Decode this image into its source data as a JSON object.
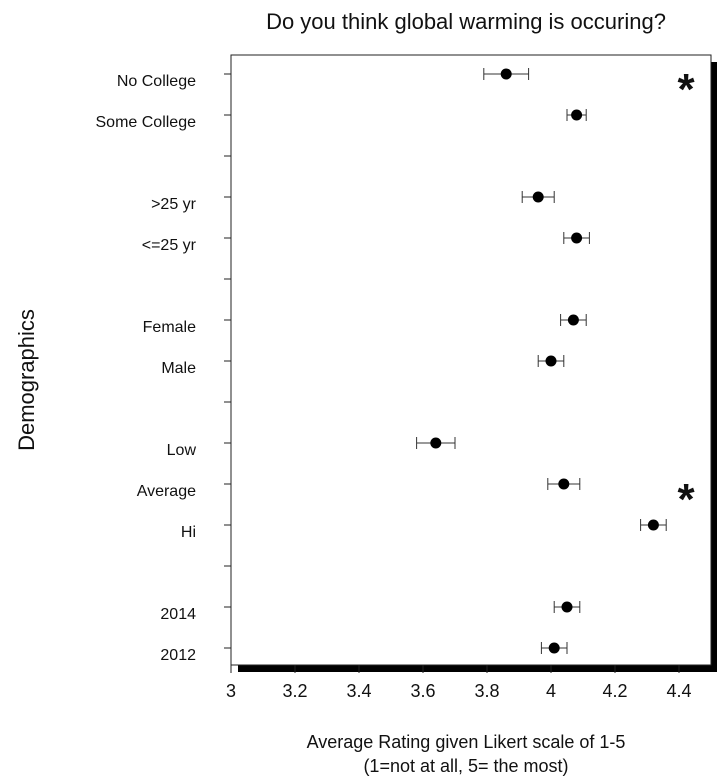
{
  "chart_data": {
    "type": "scatter",
    "title": "Do you think global warming is occuring?",
    "xlabel_line1": "Average Rating given Likert scale of 1-5",
    "xlabel_line2": "(1=not at all, 5= the most)",
    "ylabel": "Demographics",
    "xlim": [
      3,
      4.5
    ],
    "x_ticks": [
      {
        "value": 3,
        "label": "3"
      },
      {
        "value": 3.2,
        "label": "3.2"
      },
      {
        "value": 3.4,
        "label": "3.4"
      },
      {
        "value": 3.6,
        "label": "3.6"
      },
      {
        "value": 3.8,
        "label": "3.8"
      },
      {
        "value": 4,
        "label": "4"
      },
      {
        "value": 4.2,
        "label": "4.2"
      },
      {
        "value": 4.4,
        "label": "4.4"
      }
    ],
    "categories": [
      {
        "label": "No College",
        "mean": 3.86,
        "low": 3.79,
        "high": 3.93
      },
      {
        "label": "Some College",
        "mean": 4.08,
        "low": 4.05,
        "high": 4.11
      },
      {
        "label": "",
        "mean": null,
        "low": null,
        "high": null
      },
      {
        "label": ">25 yr",
        "mean": 3.96,
        "low": 3.91,
        "high": 4.01
      },
      {
        "label": "<=25 yr",
        "mean": 4.08,
        "low": 4.04,
        "high": 4.12
      },
      {
        "label": "",
        "mean": null,
        "low": null,
        "high": null
      },
      {
        "label": "Female",
        "mean": 4.07,
        "low": 4.03,
        "high": 4.11
      },
      {
        "label": "Male",
        "mean": 4.0,
        "low": 3.96,
        "high": 4.04
      },
      {
        "label": "",
        "mean": null,
        "low": null,
        "high": null
      },
      {
        "label": "Low",
        "mean": 3.64,
        "low": 3.58,
        "high": 3.7
      },
      {
        "label": "Average",
        "mean": 4.04,
        "low": 3.99,
        "high": 4.09
      },
      {
        "label": "Hi",
        "mean": 4.32,
        "low": 4.28,
        "high": 4.36
      },
      {
        "label": "",
        "mean": null,
        "low": null,
        "high": null
      },
      {
        "label": "2014",
        "mean": 4.05,
        "low": 4.01,
        "high": 4.09
      },
      {
        "label": "2012",
        "mean": 4.01,
        "low": 3.97,
        "high": 4.05
      }
    ],
    "significance_markers": [
      {
        "category_index": 0,
        "symbol": "*"
      },
      {
        "category_index": 10,
        "symbol": "*"
      }
    ],
    "grid": false,
    "frame_shadow_color": "#000000",
    "marker_color": "#000000"
  }
}
